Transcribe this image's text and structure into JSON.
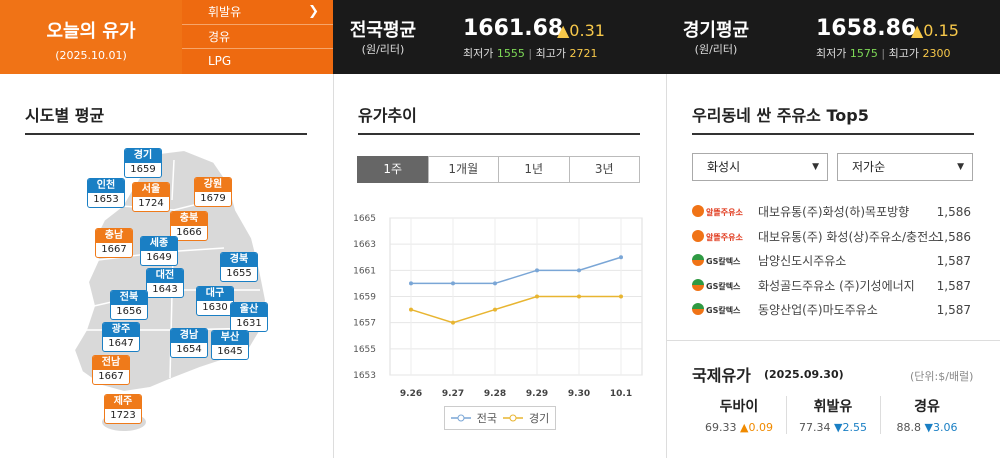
{
  "header": {
    "today_title": "오늘의 유가",
    "today_date": "(2025.10.01)",
    "fuel_menu": [
      "휘발유",
      "경유",
      "LPG"
    ],
    "national": {
      "name": "전국평균",
      "unit": "(원/리터)",
      "price": "1661.68",
      "change": "▲0.31",
      "min_label": "최저가",
      "min": "1555",
      "max_label": "최고가",
      "max": "2721"
    },
    "gyeonggi": {
      "name": "경기평균",
      "unit": "(원/리터)",
      "price": "1658.86",
      "change": "▲0.15",
      "min_label": "최저가",
      "min": "1575",
      "max_label": "최고가",
      "max": "2300"
    }
  },
  "regional": {
    "title": "시도별 평균",
    "regions": [
      {
        "name": "경기",
        "value": "1659",
        "color": "blue"
      },
      {
        "name": "인천",
        "value": "1653",
        "color": "blue"
      },
      {
        "name": "서울",
        "value": "1724",
        "color": "orange"
      },
      {
        "name": "강원",
        "value": "1679",
        "color": "orange"
      },
      {
        "name": "충북",
        "value": "1666",
        "color": "orange"
      },
      {
        "name": "충남",
        "value": "1667",
        "color": "orange"
      },
      {
        "name": "세종",
        "value": "1649",
        "color": "blue"
      },
      {
        "name": "대전",
        "value": "1643",
        "color": "blue"
      },
      {
        "name": "경북",
        "value": "1655",
        "color": "blue"
      },
      {
        "name": "전북",
        "value": "1656",
        "color": "blue"
      },
      {
        "name": "대구",
        "value": "1630",
        "color": "blue"
      },
      {
        "name": "울산",
        "value": "1631",
        "color": "blue"
      },
      {
        "name": "광주",
        "value": "1647",
        "color": "blue"
      },
      {
        "name": "경남",
        "value": "1654",
        "color": "blue"
      },
      {
        "name": "부산",
        "value": "1645",
        "color": "blue"
      },
      {
        "name": "전남",
        "value": "1667",
        "color": "orange"
      },
      {
        "name": "제주",
        "value": "1723",
        "color": "orange"
      }
    ]
  },
  "trend": {
    "title": "유가추이",
    "tabs": [
      "1주",
      "1개월",
      "1년",
      "3년"
    ],
    "active_tab": "1주",
    "legend": [
      "전국",
      "경기"
    ]
  },
  "chart_data": {
    "type": "line",
    "x": [
      "9.26",
      "9.27",
      "9.28",
      "9.29",
      "9.30",
      "10.1"
    ],
    "ylim": [
      1653,
      1665
    ],
    "yticks": [
      1653,
      1655,
      1657,
      1659,
      1661,
      1663,
      1665
    ],
    "grid": true,
    "legend_position": "bottom",
    "series": [
      {
        "name": "전국",
        "values": [
          1660,
          1660,
          1660,
          1661,
          1661,
          1662
        ],
        "color": "#7aa6d6"
      },
      {
        "name": "경기",
        "values": [
          1658,
          1657,
          1658,
          1659,
          1659,
          1659
        ],
        "color": "#e8b531"
      }
    ]
  },
  "stations": {
    "title": "우리동네 싼 주유소 Top5",
    "region_select": "화성시",
    "sort_select": "저가순",
    "items": [
      {
        "brand": "알뜰주유소",
        "name": "대보유통(주)화성(하)목포방향",
        "price": "1,586",
        "type": "sk"
      },
      {
        "brand": "알뜰주유소",
        "name": "대보유통(주) 화성(상)주유소/충전소",
        "price": "1,586",
        "type": "sk"
      },
      {
        "brand": "GS칼텍스",
        "name": "남양신도시주유소",
        "price": "1,587",
        "type": "gs"
      },
      {
        "brand": "GS칼텍스",
        "name": "화성골드주유소 (주)기성에너지",
        "price": "1,587",
        "type": "gs"
      },
      {
        "brand": "GS칼텍스",
        "name": "동양산업(주)마도주유소",
        "price": "1,587",
        "type": "gs"
      }
    ]
  },
  "international": {
    "title": "국제유가",
    "date": "(2025.09.30)",
    "unit": "(단위:$/배럴)",
    "items": [
      {
        "name": "두바이",
        "price": "69.33",
        "change": "▲0.09",
        "dir": "up"
      },
      {
        "name": "휘발유",
        "price": "77.34",
        "change": "▼2.55",
        "dir": "down"
      },
      {
        "name": "경유",
        "price": "88.8",
        "change": "▼3.06",
        "dir": "down"
      }
    ]
  },
  "colors": {
    "brand_orange": "#f07316",
    "blue_tag": "#1a7fc4",
    "orange_tag": "#ef7a1a",
    "header_bg": "#1a1a1a"
  }
}
